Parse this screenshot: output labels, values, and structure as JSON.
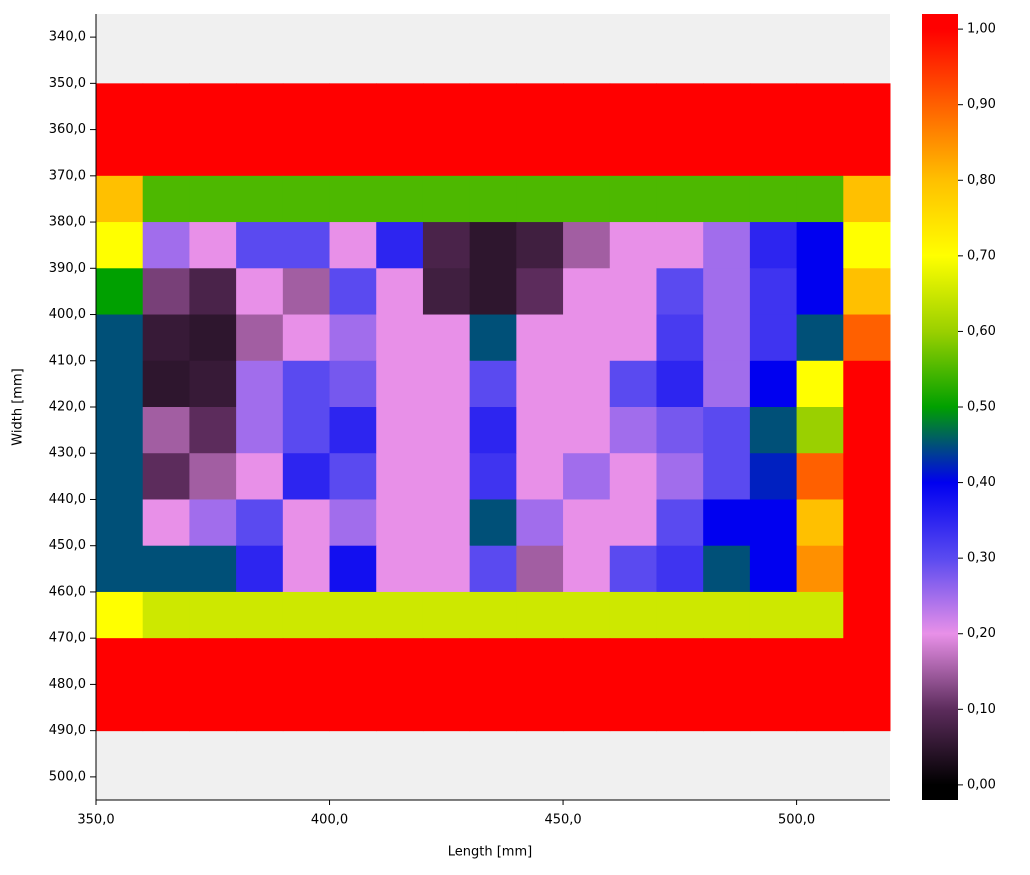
{
  "chart_data": {
    "type": "heatmap",
    "x_label": "Length [mm]",
    "y_label": "Width [mm]",
    "background": "#f0f0f0",
    "xlim": [
      350,
      520
    ],
    "ylim": [
      335,
      505
    ],
    "y_inverted": true,
    "xticks": [
      {
        "value": 350,
        "label": "350,0"
      },
      {
        "value": 400,
        "label": "400,0"
      },
      {
        "value": 450,
        "label": "450,0"
      },
      {
        "value": 500,
        "label": "500,0"
      }
    ],
    "yticks": [
      {
        "value": 340,
        "label": "340,0"
      },
      {
        "value": 350,
        "label": "350,0"
      },
      {
        "value": 360,
        "label": "360,0"
      },
      {
        "value": 370,
        "label": "370,0"
      },
      {
        "value": 380,
        "label": "380,0"
      },
      {
        "value": 390,
        "label": "390,0"
      },
      {
        "value": 400,
        "label": "400,0"
      },
      {
        "value": 410,
        "label": "410,0"
      },
      {
        "value": 420,
        "label": "420,0"
      },
      {
        "value": 430,
        "label": "430,0"
      },
      {
        "value": 440,
        "label": "440,0"
      },
      {
        "value": 450,
        "label": "450,0"
      },
      {
        "value": 460,
        "label": "460,0"
      },
      {
        "value": 470,
        "label": "470,0"
      },
      {
        "value": 480,
        "label": "480,0"
      },
      {
        "value": 490,
        "label": "490,0"
      },
      {
        "value": 500,
        "label": "500,0"
      }
    ],
    "x": [
      355,
      365,
      375,
      385,
      395,
      405,
      415,
      425,
      435,
      445,
      455,
      465,
      475,
      485,
      495,
      505,
      515
    ],
    "y": [
      355,
      365,
      375,
      385,
      395,
      405,
      415,
      425,
      435,
      445,
      455,
      465,
      475,
      485
    ],
    "cell_size": 10,
    "z": [
      [
        1,
        1,
        1,
        1,
        1,
        1,
        1,
        1,
        1,
        1,
        1,
        1,
        1,
        1,
        1,
        1,
        1
      ],
      [
        1,
        1,
        1,
        1,
        1,
        1,
        1,
        1,
        1,
        1,
        1,
        1,
        1,
        1,
        1,
        1,
        1
      ],
      [
        0.8,
        0.55,
        0.55,
        0.55,
        0.55,
        0.55,
        0.55,
        0.55,
        0.55,
        0.55,
        0.55,
        0.55,
        0.55,
        0.55,
        0.55,
        0.55,
        0.8
      ],
      [
        0.7,
        0.25,
        0.2,
        0.3,
        0.3,
        0.2,
        0.35,
        0.08,
        0.05,
        0.07,
        0.15,
        0.2,
        0.2,
        0.25,
        0.35,
        0.4,
        0.7
      ],
      [
        0.5,
        0.12,
        0.08,
        0.2,
        0.15,
        0.3,
        0.2,
        0.07,
        0.05,
        0.1,
        0.2,
        0.2,
        0.3,
        0.25,
        0.33,
        0.4,
        0.8
      ],
      [
        0.45,
        0.06,
        0.05,
        0.15,
        0.2,
        0.25,
        0.2,
        0.2,
        0.45,
        0.2,
        0.2,
        0.2,
        0.32,
        0.25,
        0.33,
        0.45,
        0.9
      ],
      [
        0.45,
        0.05,
        0.06,
        0.25,
        0.3,
        0.28,
        0.2,
        0.2,
        0.3,
        0.2,
        0.2,
        0.3,
        0.35,
        0.25,
        0.4,
        0.7,
        1
      ],
      [
        0.45,
        0.15,
        0.1,
        0.25,
        0.3,
        0.35,
        0.2,
        0.2,
        0.35,
        0.2,
        0.2,
        0.25,
        0.28,
        0.3,
        0.45,
        0.6,
        1
      ],
      [
        0.45,
        0.1,
        0.15,
        0.2,
        0.35,
        0.3,
        0.2,
        0.2,
        0.33,
        0.2,
        0.25,
        0.2,
        0.25,
        0.3,
        0.42,
        0.9,
        1
      ],
      [
        0.45,
        0.2,
        0.25,
        0.3,
        0.2,
        0.25,
        0.2,
        0.2,
        0.45,
        0.25,
        0.2,
        0.2,
        0.3,
        0.4,
        0.4,
        0.8,
        1
      ],
      [
        0.45,
        0.45,
        0.45,
        0.35,
        0.2,
        0.38,
        0.2,
        0.2,
        0.3,
        0.15,
        0.2,
        0.3,
        0.33,
        0.45,
        0.4,
        0.85,
        1
      ],
      [
        0.7,
        0.65,
        0.65,
        0.65,
        0.65,
        0.65,
        0.65,
        0.65,
        0.65,
        0.65,
        0.65,
        0.65,
        0.65,
        0.65,
        0.65,
        0.65,
        1
      ],
      [
        1,
        1,
        1,
        1,
        1,
        1,
        1,
        1,
        1,
        1,
        1,
        1,
        1,
        1,
        1,
        1,
        1
      ],
      [
        1,
        1,
        1,
        1,
        1,
        1,
        1,
        1,
        1,
        1,
        1,
        1,
        1,
        1,
        1,
        1,
        1
      ]
    ],
    "colorbar": {
      "lim": [
        -0.02,
        1.02
      ],
      "ticks": [
        {
          "value": 0,
          "label": "0,00"
        },
        {
          "value": 0.1,
          "label": "0,10"
        },
        {
          "value": 0.2,
          "label": "0,20"
        },
        {
          "value": 0.3,
          "label": "0,30"
        },
        {
          "value": 0.4,
          "label": "0,40"
        },
        {
          "value": 0.5,
          "label": "0,50"
        },
        {
          "value": 0.6,
          "label": "0,60"
        },
        {
          "value": 0.7,
          "label": "0,70"
        },
        {
          "value": 0.8,
          "label": "0,80"
        },
        {
          "value": 0.9,
          "label": "0,90"
        },
        {
          "value": 1,
          "label": "1,00"
        }
      ],
      "stops": [
        {
          "value": 0,
          "color": "#000000"
        },
        {
          "value": 0.1,
          "color": "#5c2c5c"
        },
        {
          "value": 0.2,
          "color": "#e890e8"
        },
        {
          "value": 0.3,
          "color": "#5a4af0"
        },
        {
          "value": 0.4,
          "color": "#0000f0"
        },
        {
          "value": 0.5,
          "color": "#00a000"
        },
        {
          "value": 0.6,
          "color": "#9ad000"
        },
        {
          "value": 0.7,
          "color": "#ffff00"
        },
        {
          "value": 0.8,
          "color": "#ffc000"
        },
        {
          "value": 0.9,
          "color": "#ff6000"
        },
        {
          "value": 1,
          "color": "#ff0000"
        }
      ]
    }
  }
}
